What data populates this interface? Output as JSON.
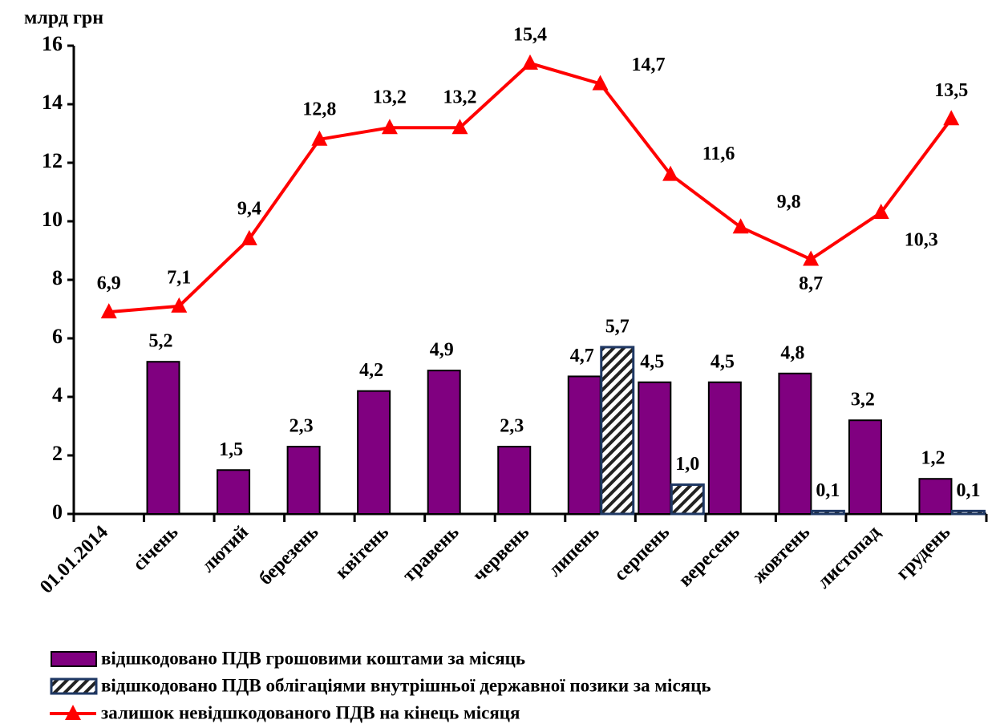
{
  "chart_data": {
    "type": "bar",
    "y_label": "млрд грн",
    "categories": [
      "01.01.2014",
      "січень",
      "лютий",
      "березень",
      "квітень",
      "травень",
      "червень",
      "липень",
      "серпень",
      "вересень",
      "жовтень",
      "листопад",
      "грудень"
    ],
    "series": [
      {
        "name": "відшкодовано ПДВ грошовими коштами за місяць",
        "color": "#800080",
        "values": [
          null,
          5.2,
          1.5,
          2.3,
          4.2,
          4.9,
          2.3,
          4.7,
          4.5,
          4.5,
          4.8,
          3.2,
          1.2
        ],
        "value_labels": [
          null,
          "5,2",
          "1,5",
          "2,3",
          "4,2",
          "4,9",
          "2,3",
          "4,7",
          "4,5",
          "4,5",
          "4,8",
          "3,2",
          "1,2"
        ]
      },
      {
        "name": "відшкодовано ПДВ облігаціями внутрішньої державної позики за місяць",
        "color": "#1f3864",
        "pattern": "hatch",
        "values": [
          null,
          null,
          null,
          null,
          null,
          null,
          null,
          5.7,
          1.0,
          null,
          0.1,
          null,
          0.1
        ],
        "value_labels": [
          null,
          null,
          null,
          null,
          null,
          null,
          null,
          "5,7",
          "1,0",
          null,
          "0,1",
          null,
          "0,1"
        ]
      },
      {
        "name": "залишок невідшкодованого ПДВ на кінець місяця",
        "type": "line",
        "marker": "triangle",
        "color": "#ff0000",
        "values": [
          6.9,
          7.1,
          9.4,
          12.8,
          13.2,
          13.2,
          15.4,
          14.7,
          11.6,
          9.8,
          8.7,
          10.3,
          13.5
        ],
        "value_labels": [
          "6,9",
          "7,1",
          "9,4",
          "12,8",
          "13,2",
          "13,2",
          "15,4",
          "14,7",
          "11,6",
          "9,8",
          "8,7",
          "10,3",
          "13,5"
        ]
      }
    ],
    "ylim": [
      0,
      16
    ],
    "yticks": [
      0,
      2,
      4,
      6,
      8,
      10,
      12,
      14,
      16
    ],
    "legend": "bottom"
  }
}
